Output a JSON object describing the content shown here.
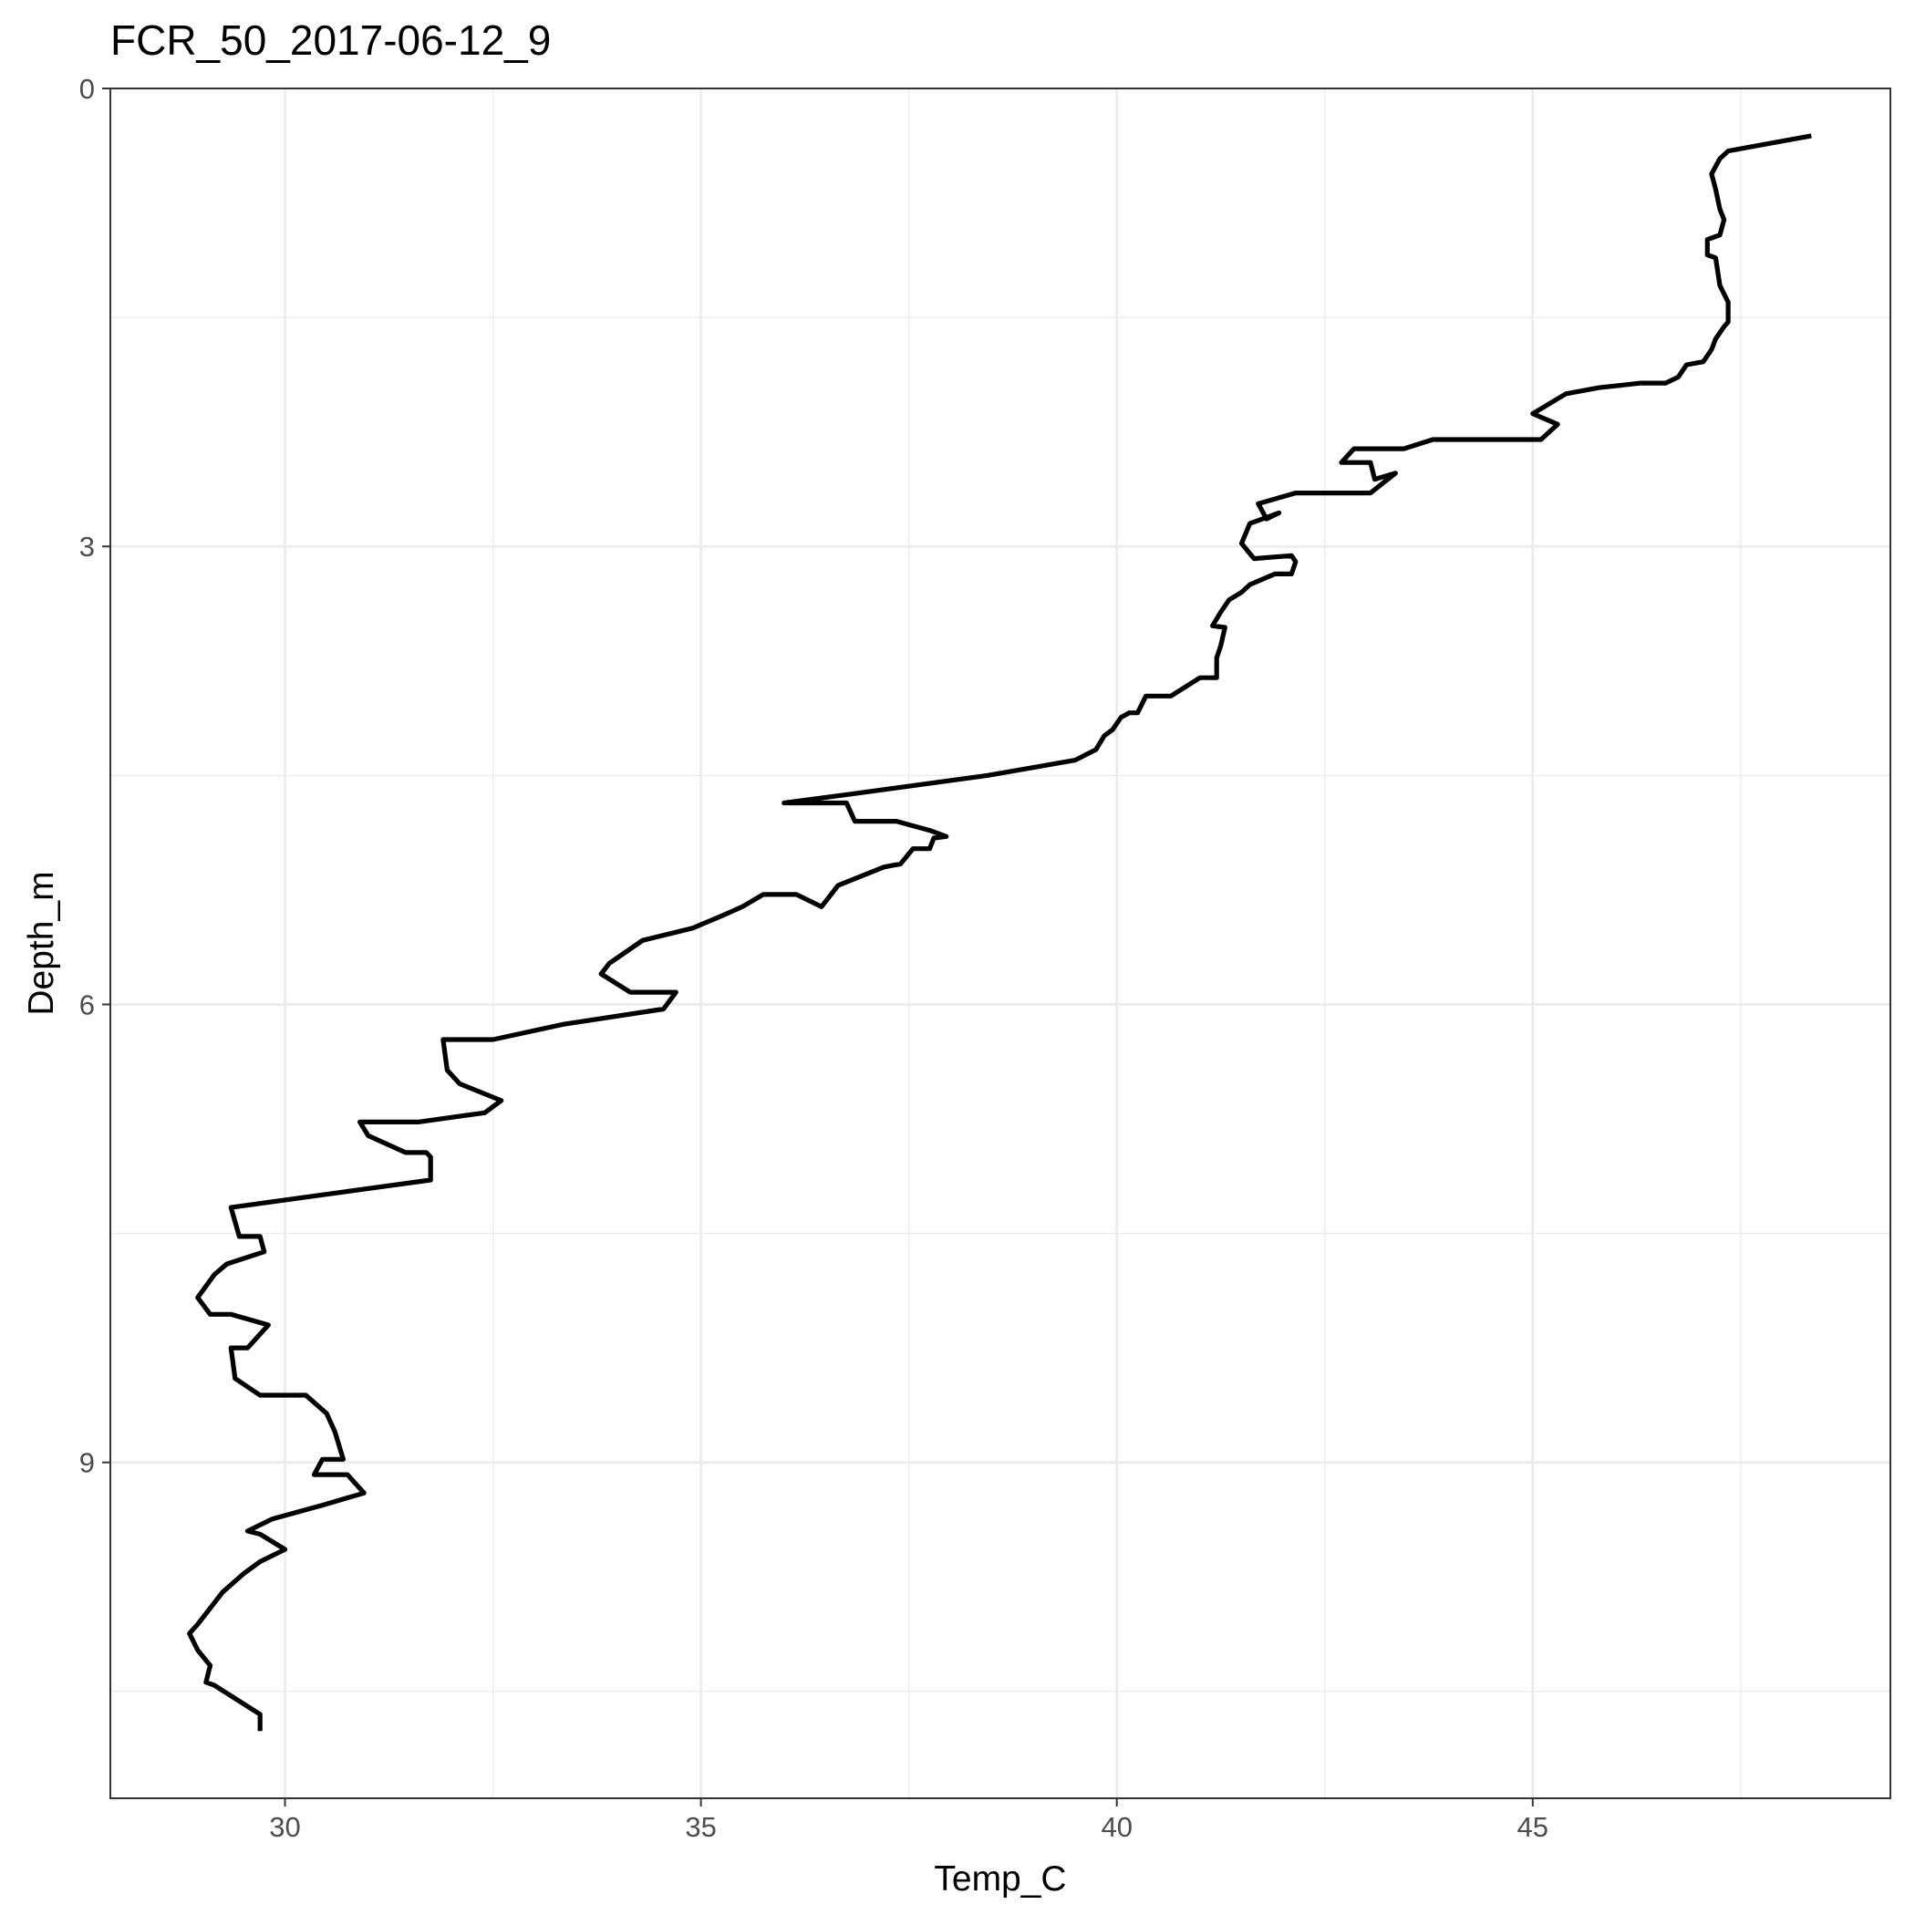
{
  "chart_data": {
    "type": "line",
    "title": "FCR_50_2017-06-12_9",
    "xlabel": "Temp_C",
    "ylabel": "Depth_m",
    "xlim": [
      27.9,
      49.3
    ],
    "ylim": [
      0,
      11.2
    ],
    "y_reversed": true,
    "grid": true,
    "x_ticks": [
      30,
      35,
      40,
      45
    ],
    "y_ticks": [
      0,
      3,
      6,
      9
    ],
    "x_minor": [
      32.5,
      37.5,
      42.5,
      47.5
    ],
    "y_minor": [
      1.5,
      4.5,
      7.5,
      10.5
    ],
    "series": [
      {
        "color": "#000000",
        "points": [
          [
            48.35,
            0.31
          ],
          [
            47.35,
            0.41
          ],
          [
            47.25,
            0.46
          ],
          [
            47.15,
            0.56
          ],
          [
            47.2,
            0.66
          ],
          [
            47.25,
            0.79
          ],
          [
            47.3,
            0.86
          ],
          [
            47.25,
            0.96
          ],
          [
            47.1,
            0.99
          ],
          [
            47.1,
            1.09
          ],
          [
            47.2,
            1.11
          ],
          [
            47.25,
            1.29
          ],
          [
            47.35,
            1.4
          ],
          [
            47.35,
            1.53
          ],
          [
            47.3,
            1.56
          ],
          [
            47.2,
            1.64
          ],
          [
            47.15,
            1.71
          ],
          [
            47.05,
            1.79
          ],
          [
            46.85,
            1.81
          ],
          [
            46.75,
            1.89
          ],
          [
            46.6,
            1.93
          ],
          [
            46.3,
            1.93
          ],
          [
            45.8,
            1.96
          ],
          [
            45.4,
            2.0
          ],
          [
            45.0,
            2.13
          ],
          [
            45.3,
            2.2
          ],
          [
            45.1,
            2.3
          ],
          [
            43.8,
            2.3
          ],
          [
            43.45,
            2.36
          ],
          [
            42.85,
            2.36
          ],
          [
            42.7,
            2.45
          ],
          [
            43.05,
            2.45
          ],
          [
            43.1,
            2.56
          ],
          [
            43.35,
            2.52
          ],
          [
            43.05,
            2.65
          ],
          [
            42.15,
            2.65
          ],
          [
            41.7,
            2.72
          ],
          [
            41.8,
            2.82
          ],
          [
            41.95,
            2.78
          ],
          [
            41.6,
            2.85
          ],
          [
            41.5,
            2.98
          ],
          [
            41.65,
            3.08
          ],
          [
            42.1,
            3.06
          ],
          [
            42.15,
            3.1
          ],
          [
            42.1,
            3.18
          ],
          [
            41.9,
            3.18
          ],
          [
            41.6,
            3.25
          ],
          [
            41.5,
            3.3
          ],
          [
            41.35,
            3.35
          ],
          [
            41.25,
            3.43
          ],
          [
            41.15,
            3.52
          ],
          [
            41.3,
            3.53
          ],
          [
            41.25,
            3.65
          ],
          [
            41.2,
            3.73
          ],
          [
            41.2,
            3.86
          ],
          [
            41.0,
            3.86
          ],
          [
            40.65,
            3.98
          ],
          [
            40.35,
            3.98
          ],
          [
            40.25,
            4.09
          ],
          [
            40.15,
            4.09
          ],
          [
            40.05,
            4.12
          ],
          [
            39.95,
            4.2
          ],
          [
            39.85,
            4.24
          ],
          [
            39.75,
            4.33
          ],
          [
            39.5,
            4.4
          ],
          [
            38.45,
            4.5
          ],
          [
            36.7,
            4.63
          ],
          [
            36.0,
            4.68
          ],
          [
            36.75,
            4.68
          ],
          [
            36.85,
            4.8
          ],
          [
            37.35,
            4.8
          ],
          [
            37.75,
            4.86
          ],
          [
            37.95,
            4.9
          ],
          [
            37.8,
            4.91
          ],
          [
            37.75,
            4.98
          ],
          [
            37.55,
            4.98
          ],
          [
            37.4,
            5.08
          ],
          [
            37.3,
            5.09
          ],
          [
            37.2,
            5.1
          ],
          [
            36.65,
            5.22
          ],
          [
            36.45,
            5.36
          ],
          [
            36.15,
            5.28
          ],
          [
            35.75,
            5.28
          ],
          [
            35.5,
            5.36
          ],
          [
            35.25,
            5.42
          ],
          [
            34.9,
            5.5
          ],
          [
            34.3,
            5.58
          ],
          [
            33.9,
            5.73
          ],
          [
            33.8,
            5.8
          ],
          [
            34.15,
            5.92
          ],
          [
            34.7,
            5.92
          ],
          [
            34.55,
            6.03
          ],
          [
            33.35,
            6.13
          ],
          [
            32.5,
            6.23
          ],
          [
            31.9,
            6.23
          ],
          [
            31.95,
            6.43
          ],
          [
            32.1,
            6.52
          ],
          [
            32.6,
            6.63
          ],
          [
            32.4,
            6.71
          ],
          [
            31.6,
            6.77
          ],
          [
            30.9,
            6.77
          ],
          [
            31.0,
            6.86
          ],
          [
            31.45,
            6.97
          ],
          [
            31.7,
            6.97
          ],
          [
            31.75,
            7.0
          ],
          [
            31.75,
            7.15
          ],
          [
            29.35,
            7.33
          ],
          [
            29.45,
            7.52
          ],
          [
            29.7,
            7.52
          ],
          [
            29.75,
            7.62
          ],
          [
            29.3,
            7.7
          ],
          [
            29.15,
            7.77
          ],
          [
            28.95,
            7.92
          ],
          [
            29.1,
            8.03
          ],
          [
            29.35,
            8.03
          ],
          [
            29.8,
            8.1
          ],
          [
            29.55,
            8.25
          ],
          [
            29.35,
            8.25
          ],
          [
            29.4,
            8.45
          ],
          [
            29.7,
            8.56
          ],
          [
            30.25,
            8.56
          ],
          [
            30.5,
            8.68
          ],
          [
            30.6,
            8.8
          ],
          [
            30.7,
            8.98
          ],
          [
            30.45,
            8.98
          ],
          [
            30.35,
            9.08
          ],
          [
            30.75,
            9.08
          ],
          [
            30.95,
            9.2
          ],
          [
            30.45,
            9.28
          ],
          [
            29.85,
            9.37
          ],
          [
            29.55,
            9.45
          ],
          [
            29.7,
            9.47
          ],
          [
            30.0,
            9.57
          ],
          [
            29.7,
            9.65
          ],
          [
            29.5,
            9.73
          ],
          [
            29.25,
            9.85
          ],
          [
            28.95,
            10.06
          ],
          [
            28.85,
            10.12
          ],
          [
            28.95,
            10.23
          ],
          [
            29.1,
            10.33
          ],
          [
            29.05,
            10.44
          ],
          [
            29.15,
            10.46
          ],
          [
            29.7,
            10.65
          ],
          [
            29.7,
            10.76
          ]
        ]
      }
    ]
  }
}
